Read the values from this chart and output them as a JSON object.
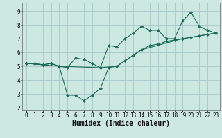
{
  "xlabel": "Humidex (Indice chaleur)",
  "bg_color": "#cce8e0",
  "line_color": "#1a6b5a",
  "grid_color": "#aacccc",
  "xlim": [
    -0.5,
    23.5
  ],
  "ylim": [
    1.8,
    9.6
  ],
  "xticks": [
    0,
    1,
    2,
    3,
    4,
    5,
    6,
    7,
    8,
    9,
    10,
    11,
    12,
    13,
    14,
    15,
    16,
    17,
    18,
    19,
    20,
    21,
    22,
    23
  ],
  "yticks": [
    2,
    3,
    4,
    5,
    6,
    7,
    8,
    9
  ],
  "line1_x": [
    0,
    1,
    2,
    3,
    4,
    5,
    6,
    7,
    8,
    9,
    10,
    11,
    12,
    13,
    14,
    15,
    16,
    17,
    18,
    19,
    20,
    21,
    22,
    23
  ],
  "line1_y": [
    5.2,
    5.2,
    5.1,
    5.2,
    5.0,
    4.9,
    5.6,
    5.5,
    5.2,
    4.9,
    6.5,
    6.4,
    7.0,
    7.4,
    7.9,
    7.6,
    7.6,
    7.0,
    7.0,
    8.3,
    8.9,
    7.9,
    7.6,
    7.4
  ],
  "line2_x": [
    0,
    1,
    2,
    3,
    4,
    5,
    6,
    7,
    8,
    9,
    10,
    11,
    12,
    13,
    14,
    15,
    16,
    17,
    18,
    19,
    20,
    21,
    22,
    23
  ],
  "line2_y": [
    5.2,
    5.2,
    5.1,
    5.2,
    5.0,
    2.9,
    2.9,
    2.5,
    2.9,
    3.4,
    4.9,
    5.0,
    5.4,
    5.8,
    6.2,
    6.5,
    6.6,
    6.8,
    6.9,
    7.0,
    7.1,
    7.2,
    7.3,
    7.4
  ],
  "line3_x": [
    0,
    4,
    9,
    11,
    14,
    19,
    23
  ],
  "line3_y": [
    5.2,
    5.0,
    4.9,
    5.0,
    6.2,
    7.0,
    7.4
  ],
  "tick_fontsize": 5.5,
  "xlabel_fontsize": 7.0
}
